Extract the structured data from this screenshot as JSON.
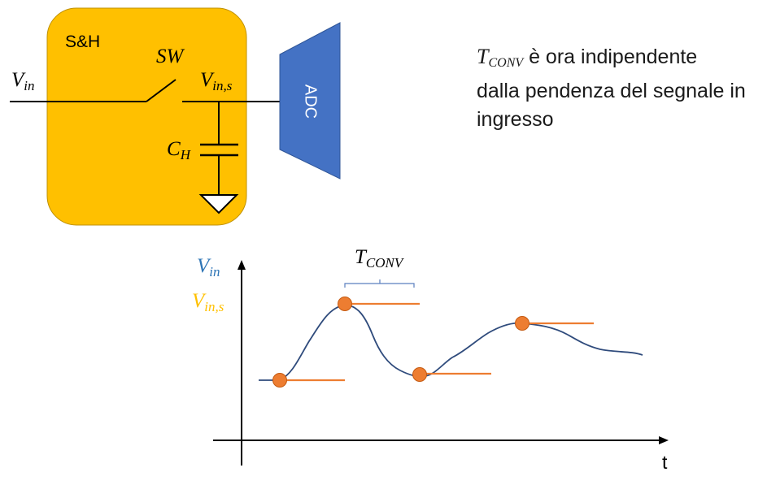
{
  "circuit": {
    "block_label": "S&H",
    "switch_label": "SW",
    "input_label": {
      "main": "V",
      "sub": "in"
    },
    "output_label": {
      "main": "V",
      "sub": "in,s"
    },
    "capacitor_label": {
      "main": "C",
      "sub": "H"
    },
    "adc_label": "ADC",
    "block_color": "#ffc000",
    "adc_color": "#4472c4"
  },
  "note": {
    "symbol": {
      "main": "T",
      "sub": "CONV"
    },
    "text_line1": " è ora indipendente",
    "text_line2": "dalla pendenza del segnale in",
    "text_line3": "ingresso"
  },
  "graph": {
    "legend_vin": {
      "main": "V",
      "sub": "in",
      "color": "#2e75b6"
    },
    "legend_vins": {
      "main": "V",
      "sub": "in,s",
      "color": "#ffc000"
    },
    "tconv_label": {
      "main": "T",
      "sub": "CONV"
    },
    "t_label": "t",
    "signal_color": "#2f4b7c",
    "sample_color": "#ed7d31"
  }
}
